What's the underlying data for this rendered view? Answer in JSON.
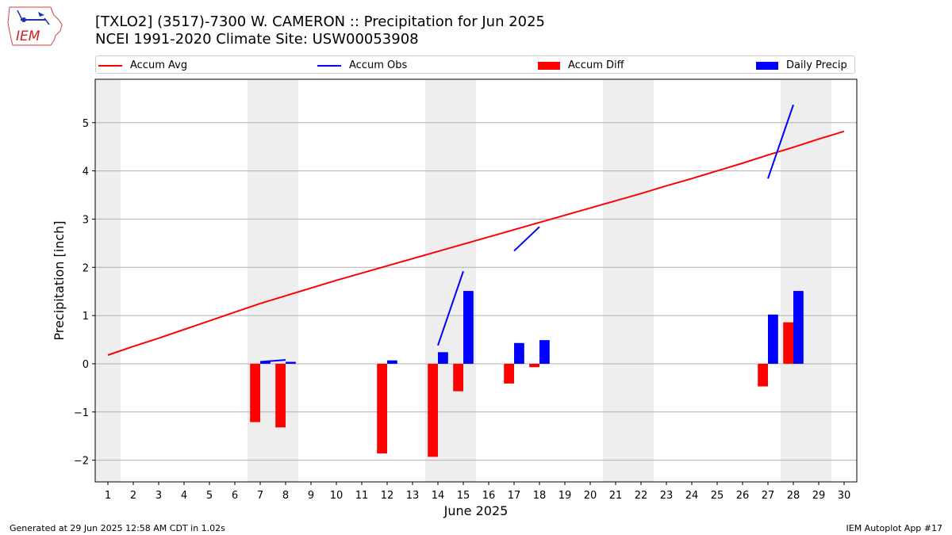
{
  "header": {
    "logo_text": "IEM",
    "title_line1": "[TXLO2] (3517)-7300 W. CAMERON :: Precipitation for Jun 2025",
    "title_line2": "NCEI 1991-2020 Climate Site: USW00053908"
  },
  "legend": {
    "items": [
      {
        "label": "Accum Avg",
        "kind": "line",
        "color": "#ff0000"
      },
      {
        "label": "Accum Obs",
        "kind": "line",
        "color": "#0000ff"
      },
      {
        "label": "Accum Diff",
        "kind": "patch",
        "color": "#ff0000"
      },
      {
        "label": "Daily Precip",
        "kind": "patch",
        "color": "#0000ff"
      }
    ]
  },
  "footer": {
    "left": "Generated at 29 Jun 2025 12:58 AM CDT in 1.02s",
    "right": "IEM Autoplot App #17"
  },
  "chart_data": {
    "type": "bar",
    "xlabel": "June 2025",
    "ylabel": "Precipitation [inch]",
    "xlim": [
      0.5,
      30.5
    ],
    "ylim": [
      -2.45,
      5.9
    ],
    "x_ticks": [
      1,
      2,
      3,
      4,
      5,
      6,
      7,
      8,
      9,
      10,
      11,
      12,
      13,
      14,
      15,
      16,
      17,
      18,
      19,
      20,
      21,
      22,
      23,
      24,
      25,
      26,
      27,
      28,
      29,
      30
    ],
    "y_ticks": [
      -2,
      -1,
      0,
      1,
      2,
      3,
      4,
      5
    ],
    "y_grid": true,
    "weekend_shading": [
      [
        0.5,
        1.5
      ],
      [
        6.5,
        8.5
      ],
      [
        13.5,
        15.5
      ],
      [
        20.5,
        22.5
      ],
      [
        27.5,
        29.5
      ]
    ],
    "series": [
      {
        "name": "Accum Avg",
        "type": "line",
        "color": "#ff0000",
        "x": [
          1,
          2,
          3,
          4,
          5,
          6,
          7,
          8,
          9,
          10,
          11,
          12,
          13,
          14,
          15,
          16,
          17,
          18,
          19,
          20,
          21,
          22,
          23,
          24,
          25,
          26,
          27,
          28,
          29,
          30
        ],
        "values": [
          0.18,
          0.36,
          0.53,
          0.71,
          0.89,
          1.07,
          1.25,
          1.41,
          1.57,
          1.73,
          1.88,
          2.03,
          2.18,
          2.33,
          2.48,
          2.63,
          2.78,
          2.93,
          3.08,
          3.23,
          3.38,
          3.53,
          3.69,
          3.84,
          4.0,
          4.16,
          4.33,
          4.49,
          4.66,
          4.82
        ]
      },
      {
        "name": "Accum Obs",
        "type": "line",
        "color": "#0000ff",
        "segments": [
          {
            "x": [
              7,
              8
            ],
            "values": [
              0.04,
              0.08
            ]
          },
          {
            "x": [
              14,
              15
            ],
            "values": [
              0.38,
              1.92
            ]
          },
          {
            "x": [
              17,
              18
            ],
            "values": [
              2.34,
              2.84
            ]
          },
          {
            "x": [
              27,
              28
            ],
            "values": [
              3.84,
              5.37
            ]
          }
        ]
      },
      {
        "name": "Accum Diff",
        "type": "bar",
        "color": "#ff0000",
        "x": [
          7,
          8,
          12,
          14,
          15,
          17,
          18,
          27,
          28
        ],
        "values": [
          -1.21,
          -1.32,
          -1.86,
          -1.93,
          -0.57,
          -0.41,
          -0.07,
          -0.47,
          0.86
        ]
      },
      {
        "name": "Daily Precip",
        "type": "bar",
        "color": "#0000ff",
        "x": [
          7,
          8,
          12,
          14,
          15,
          17,
          18,
          27,
          28
        ],
        "values": [
          0.04,
          0.04,
          0.07,
          0.24,
          1.51,
          0.43,
          0.49,
          1.02,
          1.51
        ]
      }
    ]
  }
}
